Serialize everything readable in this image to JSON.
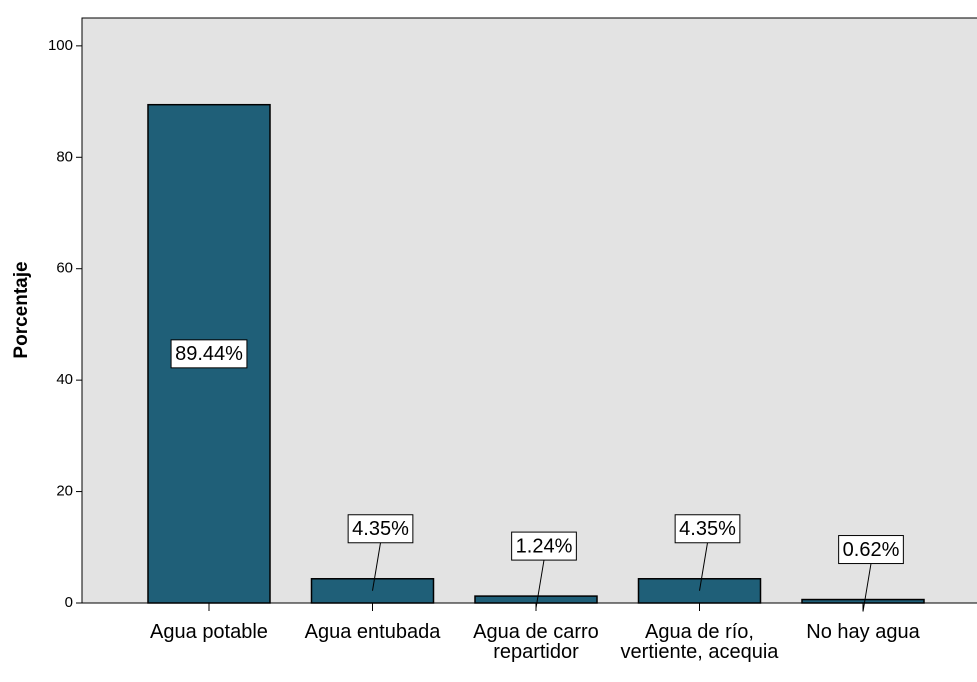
{
  "chart_data": {
    "type": "bar",
    "y_label": "Porcentaje",
    "categories": [
      "Agua potable",
      "Agua entubada",
      "Agua de carro repartidor",
      "Agua de río, vertiente, acequia",
      "No hay agua"
    ],
    "values": [
      89.44,
      4.35,
      1.24,
      4.35,
      0.62
    ],
    "value_labels": [
      "89.44%",
      "4.35%",
      "1.24%",
      "4.35%",
      "0.62%"
    ],
    "color": "#1f5f78",
    "ylim": [
      0,
      105
    ],
    "yticks": [
      0,
      20,
      40,
      60,
      80,
      100
    ],
    "grid": false
  }
}
